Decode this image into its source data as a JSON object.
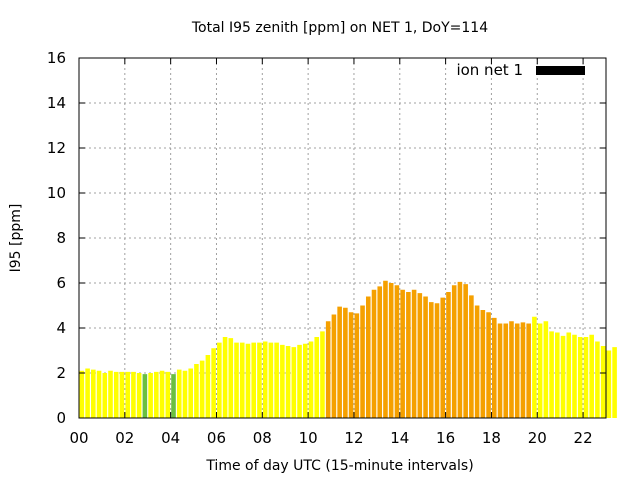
{
  "chart_data": {
    "type": "bar",
    "title": "Total I95 zenith [ppm] on NET 1, DoY=114",
    "xlabel": "Time of day UTC (15-minute intervals)",
    "ylabel": "I95 [ppm]",
    "ylim": [
      0,
      16
    ],
    "xlim": [
      0,
      23
    ],
    "yticks": [
      "0",
      "2",
      "4",
      "6",
      "8",
      "10",
      "12",
      "14",
      "16"
    ],
    "xticks": [
      "00",
      "02",
      "04",
      "06",
      "08",
      "10",
      "12",
      "14",
      "16",
      "18",
      "20",
      "22"
    ],
    "grid": true,
    "legend": {
      "position": "top-right",
      "label": "ion net 1",
      "color": "#000000"
    },
    "interval_hours": 0.25,
    "values": [
      2.1,
      2.2,
      2.15,
      2.1,
      2.0,
      2.1,
      2.05,
      2.05,
      2.05,
      2.05,
      2.0,
      1.95,
      2.0,
      2.05,
      2.1,
      2.05,
      1.95,
      2.15,
      2.1,
      2.2,
      2.4,
      2.55,
      2.8,
      3.1,
      3.35,
      3.6,
      3.55,
      3.35,
      3.35,
      3.3,
      3.35,
      3.35,
      3.4,
      3.35,
      3.35,
      3.25,
      3.2,
      3.15,
      3.25,
      3.3,
      3.4,
      3.6,
      3.85,
      4.3,
      4.6,
      4.95,
      4.9,
      4.7,
      4.65,
      5.0,
      5.4,
      5.7,
      5.85,
      6.1,
      6.0,
      5.9,
      5.7,
      5.6,
      5.7,
      5.55,
      5.4,
      5.15,
      5.1,
      5.35,
      5.6,
      5.9,
      6.05,
      5.95,
      5.45,
      5.0,
      4.8,
      4.7,
      4.45,
      4.2,
      4.2,
      4.3,
      4.2,
      4.25,
      4.2,
      4.5,
      4.2,
      4.3,
      3.85,
      3.8,
      3.65,
      3.8,
      3.7,
      3.6,
      3.6,
      3.7,
      3.4,
      3.2,
      3.0,
      3.15
    ],
    "colors": {
      "low": "#ffff00",
      "mid": "#f5a000",
      "lowest": "#6abf40",
      "grid": "#a0a0a0",
      "axis": "#000000"
    },
    "color_rule": {
      "mid_from_index": 43,
      "mid_to_index": 78,
      "lowest_indices": [
        11,
        16
      ]
    }
  }
}
